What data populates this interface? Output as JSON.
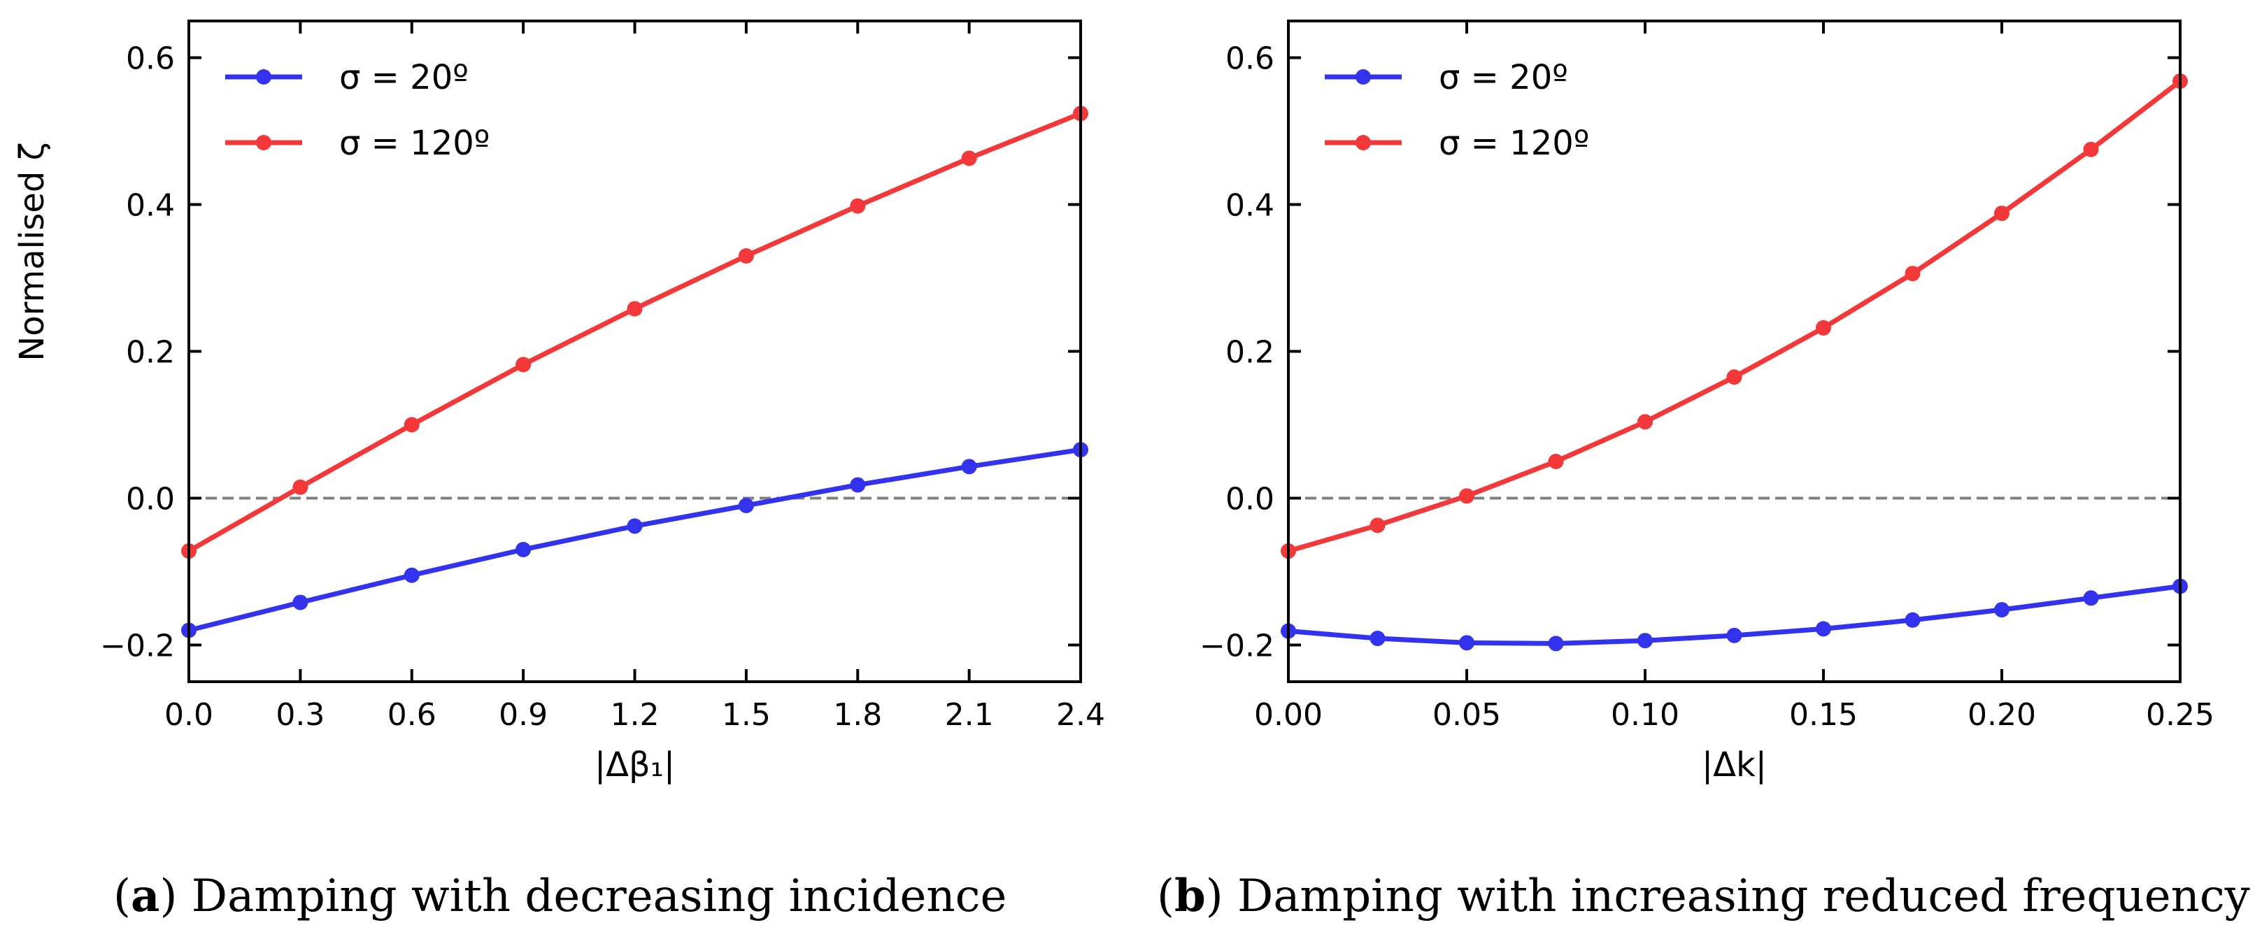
{
  "colors": {
    "series_a": "#3333ee",
    "series_b": "#f23838",
    "zero_line": "#808080",
    "axis": "#000000"
  },
  "shared": {
    "ylabel": "Normalised ζ"
  },
  "chart_data": [
    {
      "id": "a",
      "type": "line",
      "xlabel": "|Δβ₁|",
      "ylabel": "Normalised ζ",
      "xlim": [
        0.0,
        2.4
      ],
      "ylim": [
        -0.25,
        0.65
      ],
      "x_ticks": [
        "0.0",
        "0.3",
        "0.6",
        "0.9",
        "1.2",
        "1.5",
        "1.8",
        "2.1",
        "2.4"
      ],
      "y_ticks": [
        "−0.2",
        "0.0",
        "0.2",
        "0.4",
        "0.6"
      ],
      "x": [
        0.0,
        0.3,
        0.6,
        0.9,
        1.2,
        1.5,
        1.8,
        2.1,
        2.4
      ],
      "series": [
        {
          "name": "σ = 20º",
          "color": "#3333ee",
          "values": [
            -0.18,
            -0.142,
            -0.105,
            -0.07,
            -0.038,
            -0.01,
            0.018,
            0.043,
            0.066
          ]
        },
        {
          "name": "σ = 120º",
          "color": "#f23838",
          "values": [
            -0.072,
            0.015,
            0.1,
            0.182,
            0.258,
            0.33,
            0.398,
            0.463,
            0.524
          ]
        }
      ],
      "reference_line": 0.0,
      "legend": "top-left",
      "caption_letter": "a",
      "caption_text": " Damping with decreasing incidence"
    },
    {
      "id": "b",
      "type": "line",
      "xlabel": "|Δk|",
      "ylabel": "",
      "xlim": [
        0.0,
        0.25
      ],
      "ylim": [
        -0.25,
        0.65
      ],
      "x_ticks": [
        "0.00",
        "0.05",
        "0.10",
        "0.15",
        "0.20",
        "0.25"
      ],
      "y_ticks": [
        "−0.2",
        "0.0",
        "0.2",
        "0.4",
        "0.6"
      ],
      "x": [
        0.0,
        0.025,
        0.05,
        0.075,
        0.1,
        0.125,
        0.15,
        0.175,
        0.2,
        0.225,
        0.25
      ],
      "series": [
        {
          "name": "σ = 20º",
          "color": "#3333ee",
          "values": [
            -0.181,
            -0.191,
            -0.197,
            -0.198,
            -0.194,
            -0.187,
            -0.178,
            -0.166,
            -0.152,
            -0.136,
            -0.12
          ]
        },
        {
          "name": "σ = 120º",
          "color": "#f23838",
          "values": [
            -0.072,
            -0.037,
            0.003,
            0.05,
            0.104,
            0.165,
            0.232,
            0.306,
            0.388,
            0.475,
            0.568
          ]
        }
      ],
      "reference_line": 0.0,
      "legend": "top-left",
      "caption_letter": "b",
      "caption_text": " Damping with increasing reduced frequency"
    }
  ]
}
